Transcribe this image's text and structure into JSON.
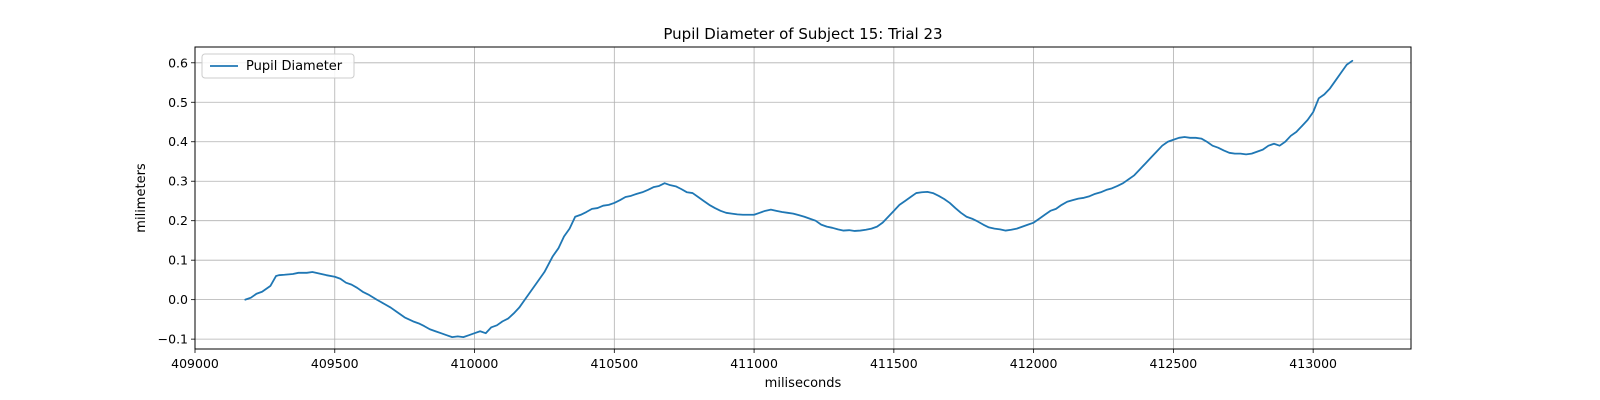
{
  "chart_data": {
    "type": "line",
    "title": "Pupil Diameter of Subject 15: Trial 23",
    "xlabel": "miliseconds",
    "ylabel": "milimeters",
    "xlim": [
      409000,
      413350
    ],
    "ylim": [
      -0.125,
      0.64
    ],
    "xticks": [
      409000,
      409500,
      410000,
      410500,
      411000,
      411500,
      412000,
      412500,
      413000
    ],
    "yticks": [
      -0.1,
      0.0,
      0.1,
      0.2,
      0.3,
      0.4,
      0.5,
      0.6
    ],
    "xtick_labels": [
      "409000",
      "409500",
      "410000",
      "410500",
      "411000",
      "411500",
      "412000",
      "412500",
      "413000"
    ],
    "ytick_labels": [
      "−0.1",
      "0.0",
      "0.1",
      "0.2",
      "0.3",
      "0.4",
      "0.5",
      "0.6"
    ],
    "grid": true,
    "legend_position": "top-left",
    "series": [
      {
        "name": "Pupil Diameter",
        "color": "#1f77b4",
        "x": [
          409180,
          409200,
          409220,
          409240,
          409270,
          409290,
          409300,
          409320,
          409350,
          409370,
          409400,
          409420,
          409440,
          409470,
          409500,
          409520,
          409540,
          409560,
          409580,
          409600,
          409620,
          409650,
          409680,
          409700,
          409720,
          409750,
          409780,
          409800,
          409820,
          409840,
          409860,
          409880,
          409900,
          409920,
          409940,
          409960,
          409980,
          410000,
          410020,
          410040,
          410060,
          410080,
          410100,
          410120,
          410140,
          410160,
          410180,
          410200,
          410220,
          410250,
          410280,
          410300,
          410320,
          410340,
          410360,
          410380,
          410400,
          410420,
          410440,
          410460,
          410480,
          410500,
          410520,
          410540,
          410560,
          410580,
          410600,
          410620,
          410640,
          410660,
          410680,
          410700,
          410720,
          410740,
          410760,
          410780,
          410800,
          410820,
          410840,
          410860,
          410880,
          410900,
          410920,
          410940,
          410960,
          410980,
          411000,
          411020,
          411040,
          411060,
          411080,
          411100,
          411120,
          411140,
          411160,
          411180,
          411200,
          411220,
          411240,
          411260,
          411280,
          411300,
          411320,
          411340,
          411360,
          411380,
          411400,
          411420,
          411440,
          411460,
          411480,
          411500,
          411520,
          411540,
          411560,
          411580,
          411600,
          411620,
          411640,
          411660,
          411680,
          411700,
          411720,
          411740,
          411760,
          411780,
          411800,
          411820,
          411840,
          411860,
          411880,
          411900,
          411920,
          411940,
          411960,
          411980,
          412000,
          412020,
          412040,
          412060,
          412080,
          412100,
          412120,
          412140,
          412160,
          412180,
          412200,
          412220,
          412240,
          412260,
          412280,
          412300,
          412320,
          412340,
          412360,
          412380,
          412400,
          412420,
          412440,
          412460,
          412480,
          412500,
          412520,
          412540,
          412560,
          412580,
          412600,
          412620,
          412640,
          412660,
          412680,
          412700,
          412720,
          412740,
          412760,
          412780,
          412800,
          412820,
          412840,
          412860,
          412880,
          412900,
          412920,
          412940,
          412960,
          412980,
          413000,
          413020,
          413040,
          413060,
          413080,
          413100,
          413120,
          413140
        ],
        "y": [
          0.0,
          0.005,
          0.015,
          0.02,
          0.035,
          0.06,
          0.062,
          0.063,
          0.065,
          0.068,
          0.068,
          0.07,
          0.067,
          0.062,
          0.058,
          0.053,
          0.043,
          0.038,
          0.03,
          0.02,
          0.013,
          0.0,
          -0.012,
          -0.02,
          -0.03,
          -0.045,
          -0.055,
          -0.06,
          -0.067,
          -0.075,
          -0.08,
          -0.085,
          -0.09,
          -0.095,
          -0.093,
          -0.095,
          -0.09,
          -0.085,
          -0.08,
          -0.085,
          -0.07,
          -0.065,
          -0.055,
          -0.048,
          -0.035,
          -0.02,
          0.0,
          0.02,
          0.04,
          0.07,
          0.11,
          0.13,
          0.16,
          0.18,
          0.21,
          0.215,
          0.222,
          0.23,
          0.232,
          0.238,
          0.24,
          0.245,
          0.252,
          0.26,
          0.263,
          0.268,
          0.272,
          0.278,
          0.285,
          0.288,
          0.295,
          0.29,
          0.287,
          0.28,
          0.272,
          0.27,
          0.26,
          0.25,
          0.24,
          0.232,
          0.225,
          0.22,
          0.218,
          0.216,
          0.215,
          0.215,
          0.215,
          0.22,
          0.225,
          0.228,
          0.225,
          0.222,
          0.22,
          0.218,
          0.214,
          0.21,
          0.205,
          0.2,
          0.19,
          0.185,
          0.182,
          0.178,
          0.175,
          0.176,
          0.174,
          0.175,
          0.177,
          0.18,
          0.185,
          0.195,
          0.21,
          0.225,
          0.24,
          0.25,
          0.26,
          0.27,
          0.272,
          0.273,
          0.27,
          0.263,
          0.255,
          0.245,
          0.232,
          0.22,
          0.21,
          0.205,
          0.198,
          0.19,
          0.183,
          0.18,
          0.178,
          0.175,
          0.177,
          0.18,
          0.185,
          0.19,
          0.195,
          0.205,
          0.215,
          0.225,
          0.23,
          0.24,
          0.248,
          0.252,
          0.256,
          0.258,
          0.262,
          0.268,
          0.272,
          0.278,
          0.282,
          0.288,
          0.295,
          0.305,
          0.315,
          0.33,
          0.345,
          0.36,
          0.375,
          0.39,
          0.4,
          0.405,
          0.41,
          0.412,
          0.41,
          0.41,
          0.408,
          0.4,
          0.39,
          0.385,
          0.378,
          0.372,
          0.37,
          0.37,
          0.368,
          0.37,
          0.375,
          0.38,
          0.39,
          0.395,
          0.39,
          0.4,
          0.415,
          0.425,
          0.44,
          0.455,
          0.475,
          0.51,
          0.52,
          0.535,
          0.555,
          0.575,
          0.595,
          0.605
        ]
      }
    ]
  }
}
